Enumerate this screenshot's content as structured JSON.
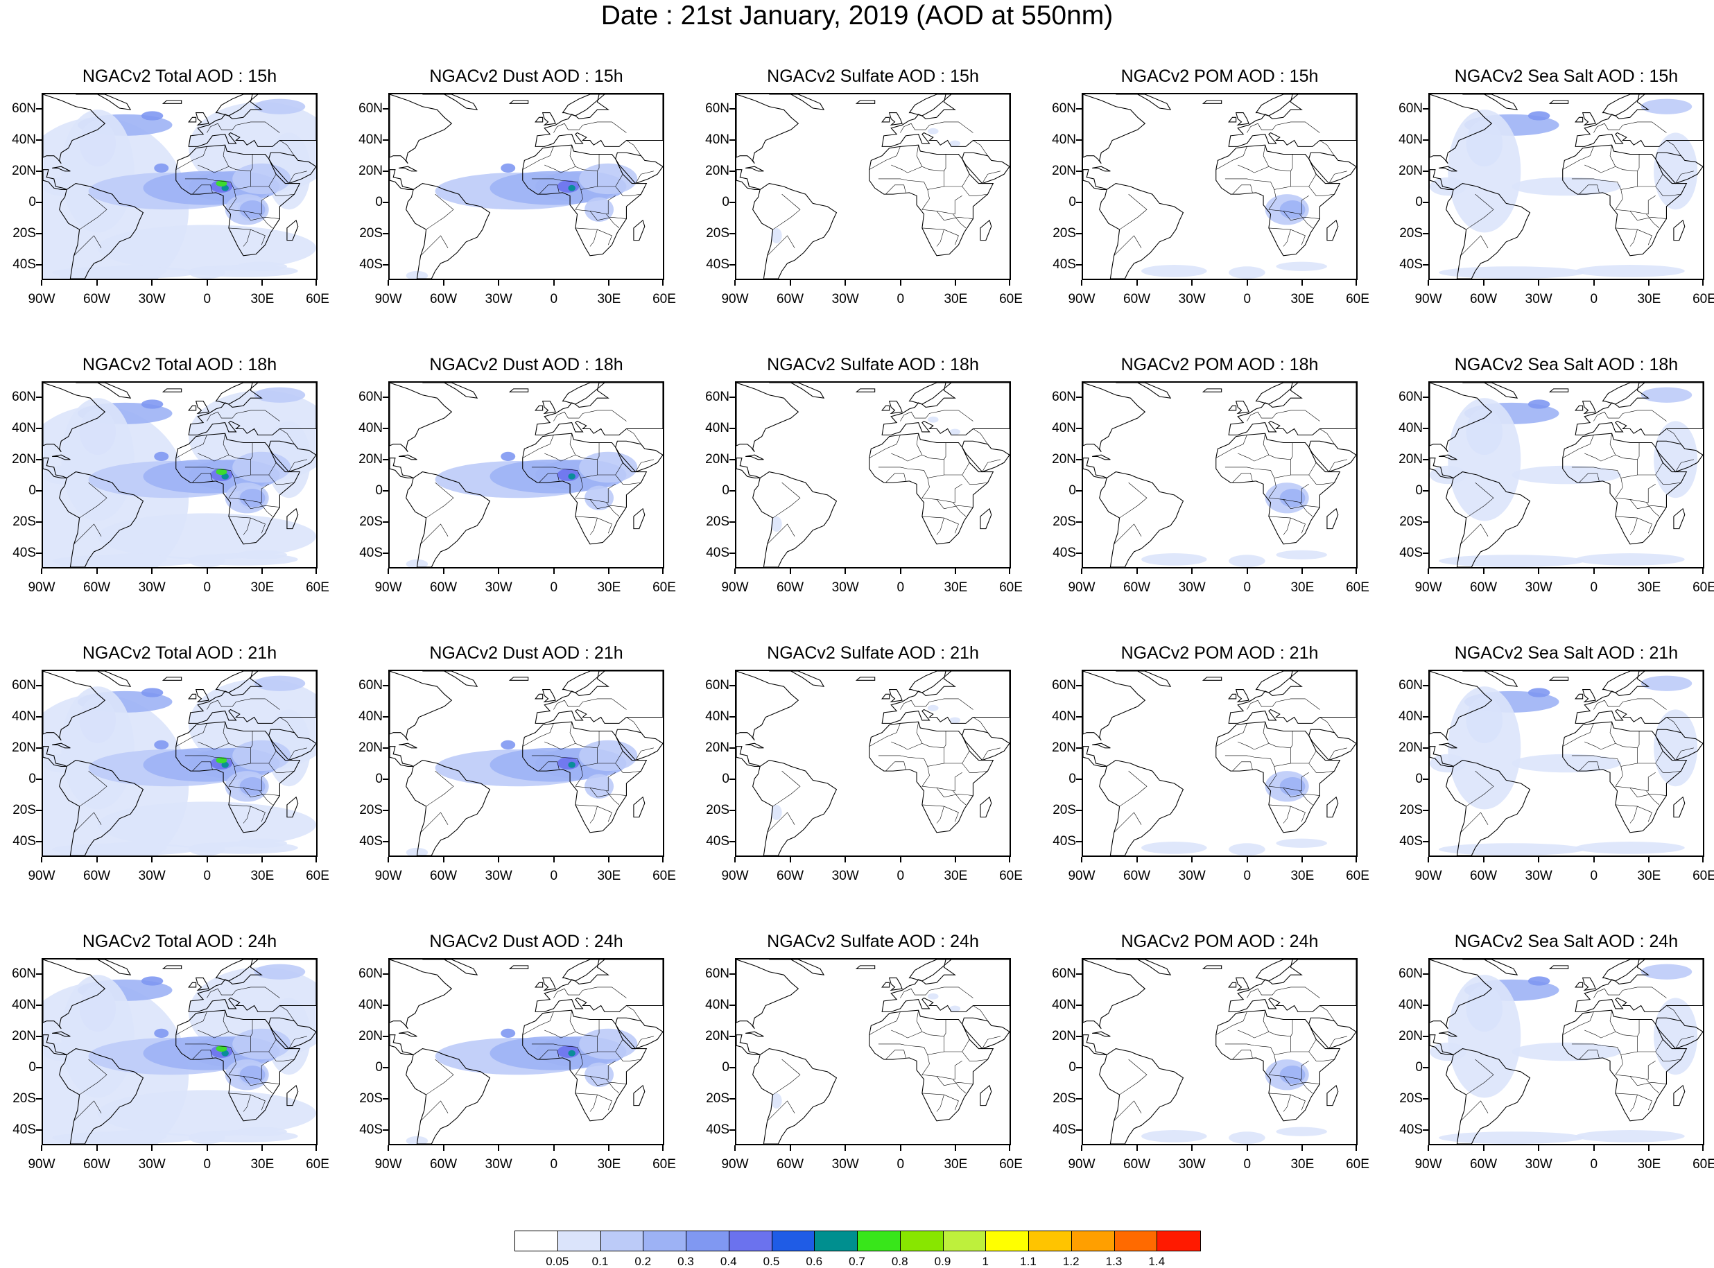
{
  "title": "Date : 21st January, 2019 (AOD at 550nm)",
  "lat_labels": [
    "60N",
    "40N",
    "20N",
    "0",
    "20S",
    "40S"
  ],
  "lon_labels": [
    "90W",
    "60W",
    "30W",
    "0",
    "30E",
    "60E"
  ],
  "rows": [
    {
      "hour": "15h",
      "titles": [
        "NGACv2 Total AOD : 15h",
        "NGACv2 Dust AOD : 15h",
        "NGACv2 Sulfate AOD : 15h",
        "NGACv2 POM AOD : 15h",
        "NGACv2 Sea Salt AOD : 15h"
      ]
    },
    {
      "hour": "18h",
      "titles": [
        "NGACv2 Total AOD : 18h",
        "NGACv2 Dust AOD : 18h",
        "NGACv2 Sulfate AOD : 18h",
        "NGACv2 POM AOD : 18h",
        "NGACv2 Sea Salt AOD : 18h"
      ]
    },
    {
      "hour": "21h",
      "titles": [
        "NGACv2 Total AOD : 21h",
        "NGACv2 Dust AOD : 21h",
        "NGACv2 Sulfate AOD : 21h",
        "NGACv2 POM AOD : 21h",
        "NGACv2 Sea Salt AOD : 21h"
      ]
    },
    {
      "hour": "24h",
      "titles": [
        "NGACv2 Total AOD : 24h",
        "NGACv2 Dust AOD : 24h",
        "NGACv2 Sulfate AOD : 24h",
        "NGACv2 POM AOD : 24h",
        "NGACv2 Sea Salt  AOD : 24h"
      ]
    }
  ],
  "species": [
    "Total",
    "Dust",
    "Sulfate",
    "POM",
    "Sea Salt"
  ],
  "map_extent": {
    "lon": [
      -90,
      60
    ],
    "lat": [
      -50,
      70
    ]
  },
  "colorbar": {
    "labels": [
      "0.05",
      "0.1",
      "0.2",
      "0.3",
      "0.4",
      "0.5",
      "0.6",
      "0.7",
      "0.8",
      "0.9",
      "1",
      "1.1",
      "1.2",
      "1.3",
      "1.4"
    ],
    "colors": [
      "#ffffff",
      "#dbe4fb",
      "#bccbf8",
      "#9db2f5",
      "#8098f2",
      "#6b72ee",
      "#1f5ce6",
      "#008f8f",
      "#38e61a",
      "#88e600",
      "#bef03c",
      "#ffff00",
      "#ffc400",
      "#ff9f00",
      "#ff6a00",
      "#ff1a00"
    ]
  }
}
